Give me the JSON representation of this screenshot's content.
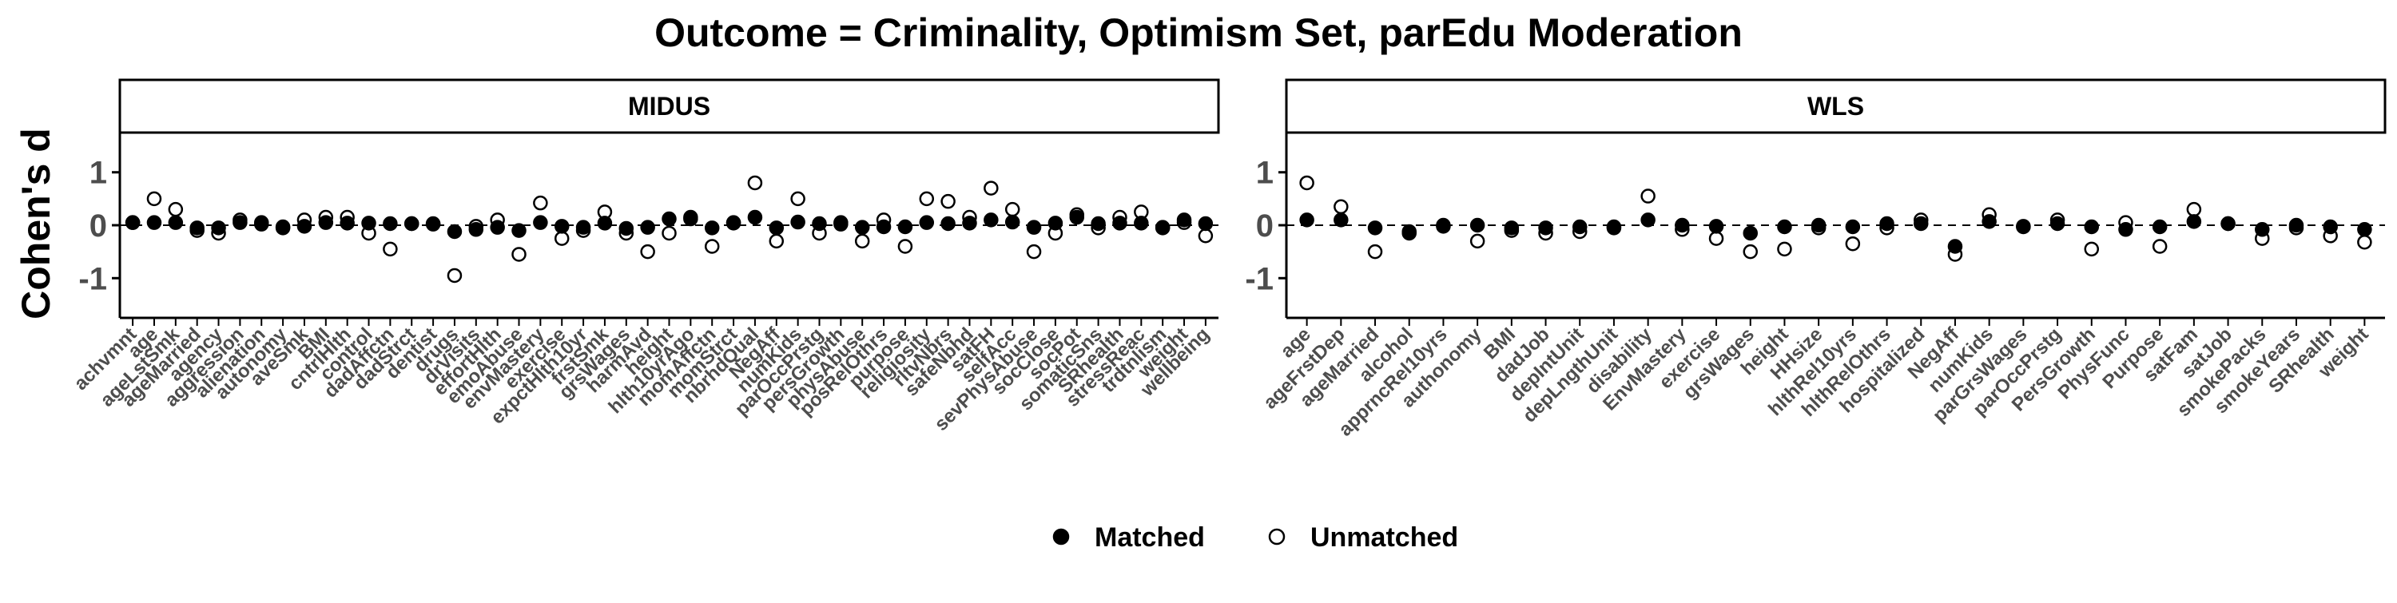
{
  "chart_data": {
    "type": "scatter",
    "title": "Outcome = Criminality, Optimism Set, parEdu Moderation",
    "ylabel": "Cohen's d",
    "xlabel": "",
    "ylim": [
      -1.75,
      1.75
    ],
    "yticks": [
      -1,
      0,
      1
    ],
    "reference_line": 0,
    "grid": false,
    "legend": {
      "position": "bottom",
      "entries": [
        {
          "label": "Matched",
          "marker": "filled-circle"
        },
        {
          "label": "Unmatched",
          "marker": "open-circle"
        }
      ]
    },
    "panels": [
      {
        "name": "MIDUS",
        "categories": [
          "achvmnt",
          "age",
          "ageLstSmk",
          "ageMarried",
          "agency",
          "aggression",
          "alienation",
          "autonomy",
          "aveSmk",
          "BMI",
          "cntrlHlth",
          "control",
          "dadAffctn",
          "dadStrct",
          "dentist",
          "drugs",
          "drVisits",
          "effortHlth",
          "emoAbuse",
          "envMastery",
          "exercise",
          "expctHlth10yr",
          "frstSmk",
          "grsWages",
          "harmAvd",
          "height",
          "hlth10yrAgo",
          "momAffctn",
          "momStrct",
          "nbrhdQual",
          "NegAff",
          "numKids",
          "parOccPrstg",
          "persGrowth",
          "physAbuse",
          "posRelOthrs",
          "purpose",
          "religiosity",
          "rltvNbrs",
          "safeNbhd",
          "satFH",
          "selfAcc",
          "sevPhysAbuse",
          "socClose",
          "socPot",
          "somaticSns",
          "SRhealth",
          "stressReac",
          "trdtnlism",
          "weight",
          "wellbeing"
        ],
        "series": [
          {
            "name": "Matched",
            "values": [
              0.05,
              0.05,
              0.05,
              -0.05,
              -0.05,
              0.05,
              0.05,
              -0.03,
              -0.02,
              0.05,
              0.04,
              0.04,
              0.03,
              0.03,
              0.03,
              -0.12,
              -0.08,
              -0.04,
              -0.1,
              0.05,
              -0.02,
              -0.04,
              0.04,
              -0.06,
              -0.04,
              0.12,
              0.12,
              -0.05,
              0.04,
              0.15,
              -0.05,
              0.06,
              0.03,
              0.05,
              -0.04,
              -0.03,
              -0.03,
              0.05,
              0.03,
              0.04,
              0.1,
              0.06,
              -0.04,
              0.04,
              0.15,
              0.03,
              0.04,
              0.04,
              -0.04,
              0.1,
              0.03
            ]
          },
          {
            "name": "Unmatched",
            "values": [
              0.05,
              0.5,
              0.3,
              -0.1,
              -0.15,
              0.1,
              0.02,
              -0.05,
              0.1,
              0.15,
              0.15,
              -0.15,
              -0.45,
              0.03,
              0.02,
              -0.95,
              -0.02,
              0.1,
              -0.55,
              0.42,
              -0.25,
              -0.1,
              0.25,
              -0.15,
              -0.5,
              -0.15,
              0.15,
              -0.4,
              0.05,
              0.8,
              -0.3,
              0.5,
              -0.15,
              0.02,
              -0.3,
              0.1,
              -0.4,
              0.5,
              0.45,
              0.15,
              0.7,
              0.3,
              -0.5,
              -0.15,
              0.2,
              -0.05,
              0.15,
              0.25,
              -0.05,
              0.05,
              -0.2
            ]
          }
        ]
      },
      {
        "name": "WLS",
        "categories": [
          "age",
          "ageFrstDep",
          "ageMarried",
          "alcohol",
          "apprncRel10yrs",
          "authonomy",
          "BMI",
          "dadJob",
          "depIntUnit",
          "depLngthUnit",
          "disability",
          "EnvMastery",
          "exercise",
          "grsWages",
          "height",
          "HHsize",
          "hlthRel10yrs",
          "hlthRelOthrs",
          "hospitalized",
          "NegAff",
          "numKids",
          "parGrsWages",
          "parOccPrstg",
          "PersGrowth",
          "PhysFunc",
          "Purpose",
          "satFam",
          "satJob",
          "smokePacks",
          "smokeYears",
          "SRhealth",
          "weight"
        ],
        "series": [
          {
            "name": "Matched",
            "values": [
              0.1,
              0.1,
              -0.05,
              -0.12,
              0.0,
              0.0,
              -0.05,
              -0.05,
              -0.03,
              -0.03,
              0.1,
              0.0,
              -0.02,
              -0.15,
              -0.03,
              0.0,
              -0.03,
              0.03,
              0.03,
              -0.4,
              0.07,
              -0.03,
              0.03,
              -0.03,
              -0.08,
              -0.03,
              0.07,
              0.03,
              -0.08,
              0.0,
              -0.03,
              -0.08
            ]
          },
          {
            "name": "Unmatched",
            "values": [
              0.8,
              0.35,
              -0.5,
              -0.15,
              -0.02,
              -0.3,
              -0.1,
              -0.15,
              -0.12,
              -0.05,
              0.55,
              -0.08,
              -0.25,
              -0.5,
              -0.45,
              -0.05,
              -0.35,
              -0.05,
              0.1,
              -0.55,
              0.2,
              -0.02,
              0.1,
              -0.45,
              0.05,
              -0.4,
              0.3,
              0.03,
              -0.25,
              -0.05,
              -0.2,
              -0.32
            ]
          }
        ]
      }
    ]
  }
}
